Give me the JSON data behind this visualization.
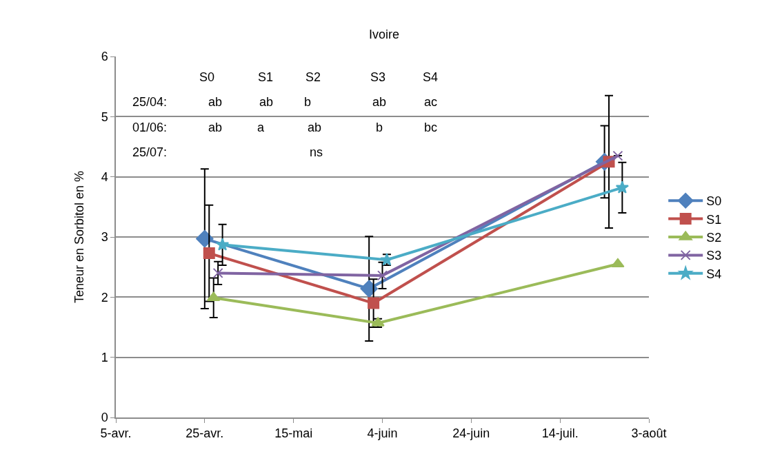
{
  "chart_data": {
    "type": "line",
    "title": "Ivoire",
    "ylabel": "Teneur en Sorbitol en %",
    "xlim": [
      "--04-05",
      "--08-03"
    ],
    "xticks": [
      {
        "value": "--04-05",
        "label": "5-avr."
      },
      {
        "value": "--04-25",
        "label": "25-avr."
      },
      {
        "value": "--05-15",
        "label": "15-mai"
      },
      {
        "value": "--06-04",
        "label": "4-juin"
      },
      {
        "value": "--06-24",
        "label": "24-juin"
      },
      {
        "value": "--07-14",
        "label": "14-juil."
      },
      {
        "value": "--08-03",
        "label": "3-août"
      }
    ],
    "ylim": [
      0,
      6
    ],
    "yticks": [
      0,
      1,
      2,
      3,
      4,
      5,
      6
    ],
    "grid": "y",
    "legend": "right",
    "series": [
      {
        "name": "S0",
        "color": "#4f81bd",
        "marker": "diamond",
        "x": [
          "--04-25",
          "--06-01",
          "--07-24"
        ],
        "values": [
          2.97,
          2.14,
          4.25
        ],
        "errors": [
          1.16,
          0.87,
          0.6
        ]
      },
      {
        "name": "S1",
        "color": "#c0504d",
        "marker": "square",
        "x": [
          "--04-26",
          "--06-02",
          "--07-25"
        ],
        "values": [
          2.73,
          1.9,
          4.25
        ],
        "errors": [
          0.8,
          0.4,
          1.1
        ]
      },
      {
        "name": "S2",
        "color": "#9bbb59",
        "marker": "triangle",
        "x": [
          "--04-27",
          "--06-03",
          "--07-27"
        ],
        "values": [
          1.99,
          1.57,
          2.55
        ],
        "errors": [
          0.33,
          0.07,
          null
        ]
      },
      {
        "name": "S3",
        "color": "#8064a2",
        "marker": "cross",
        "x": [
          "--04-28",
          "--06-04",
          "--07-27"
        ],
        "values": [
          2.4,
          2.36,
          4.35
        ],
        "errors": [
          0.19,
          0.22,
          null
        ]
      },
      {
        "name": "S4",
        "color": "#4bacc6",
        "marker": "star",
        "x": [
          "--04-29",
          "--06-05",
          "--07-28"
        ],
        "values": [
          2.87,
          2.62,
          3.82
        ],
        "errors": [
          0.34,
          0.09,
          0.42
        ]
      }
    ],
    "annotations": [
      "S0",
      "S1",
      "S2",
      "S3",
      "S4",
      "25/04:",
      "ab",
      "ab",
      "b",
      "ab",
      "ac",
      "01/06:",
      "ab",
      "a",
      "ab",
      "b",
      "bc",
      "25/07:",
      "ns"
    ]
  }
}
